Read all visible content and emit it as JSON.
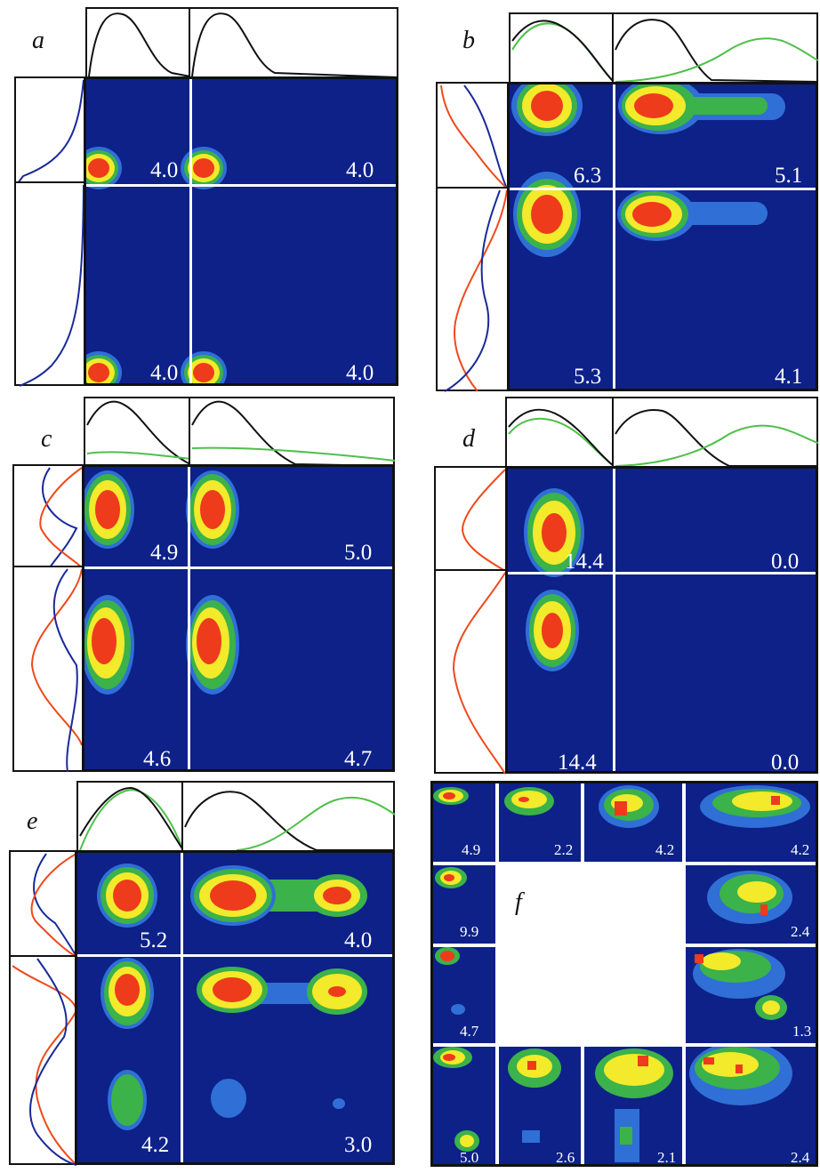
{
  "colors": {
    "background": "#0d2189",
    "level_low": "#2f6fd6",
    "level_mid": "#3bb24a",
    "level_high": "#f2ea2a",
    "level_peak": "#ee3b1c",
    "curve_black": "#111111",
    "curve_green": "#4fc04a",
    "curve_blue": "#1a2a9a",
    "curve_red": "#ee4a1c"
  },
  "panels": {
    "a": {
      "label": "a",
      "values": [
        "4.0",
        "4.0",
        "4.0",
        "4.0"
      ]
    },
    "b": {
      "label": "b",
      "values": [
        "6.3",
        "5.1",
        "5.3",
        "4.1"
      ]
    },
    "c": {
      "label": "c",
      "values": [
        "4.9",
        "5.0",
        "4.6",
        "4.7"
      ]
    },
    "d": {
      "label": "d",
      "values": [
        "14.4",
        "0.0",
        "14.4",
        "0.0"
      ]
    },
    "e": {
      "label": "e",
      "values": [
        "5.2",
        "4.0",
        "4.2",
        "3.0"
      ]
    },
    "f": {
      "label": "f",
      "values": [
        "4.9",
        "2.2",
        "4.2",
        "4.2",
        "9.9",
        "2.4",
        "4.7",
        "1.3",
        "5.0",
        "2.6",
        "2.1",
        "2.4"
      ]
    }
  }
}
